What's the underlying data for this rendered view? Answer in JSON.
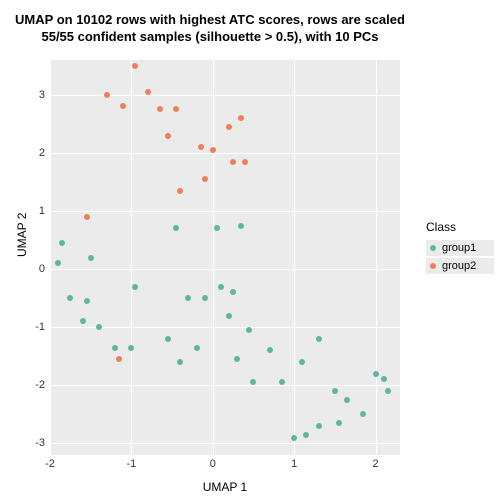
{
  "chart": {
    "type": "scatter",
    "title_line1": "UMAP on 10102 rows with highest ATC scores, rows are scaled",
    "title_line2": "55/55 confident samples (silhouette > 0.5), with 10 PCs",
    "title_fontsize": 13,
    "xlabel": "UMAP 1",
    "ylabel": "UMAP 2",
    "label_fontsize": 12,
    "tick_fontsize": 11,
    "xlim": [
      -2,
      2.3
    ],
    "ylim": [
      -3.2,
      3.6
    ],
    "xticks": [
      -2,
      -1,
      0,
      1,
      2
    ],
    "yticks": [
      -3,
      -2,
      -1,
      0,
      1,
      2,
      3
    ],
    "background_color": "#ffffff",
    "panel_color": "#ebebeb",
    "grid_color": "#ffffff",
    "legend": {
      "title": "Class",
      "items": [
        {
          "label": "group1",
          "color": "#5fb5a3"
        },
        {
          "label": "group2",
          "color": "#f07d5e"
        }
      ]
    },
    "series": [
      {
        "name": "group1",
        "color": "#5fb5a3",
        "marker_size": 6,
        "points": [
          [
            -1.9,
            0.1
          ],
          [
            -1.85,
            0.45
          ],
          [
            -1.75,
            -0.5
          ],
          [
            -1.6,
            -0.9
          ],
          [
            -1.5,
            0.2
          ],
          [
            -1.55,
            -0.55
          ],
          [
            -1.4,
            -1.0
          ],
          [
            -1.2,
            -1.35
          ],
          [
            -1.0,
            -1.35
          ],
          [
            -0.95,
            -0.3
          ],
          [
            -0.55,
            -1.2
          ],
          [
            -0.45,
            0.7
          ],
          [
            -0.4,
            -1.6
          ],
          [
            -0.3,
            -0.5
          ],
          [
            -0.2,
            -1.35
          ],
          [
            -0.1,
            -0.5
          ],
          [
            0.05,
            0.7
          ],
          [
            0.1,
            -0.3
          ],
          [
            0.2,
            -0.8
          ],
          [
            0.25,
            -0.4
          ],
          [
            0.3,
            -1.55
          ],
          [
            0.35,
            0.75
          ],
          [
            0.45,
            -1.05
          ],
          [
            0.5,
            -1.95
          ],
          [
            0.7,
            -1.4
          ],
          [
            0.85,
            -1.95
          ],
          [
            1.0,
            -2.9
          ],
          [
            1.1,
            -1.6
          ],
          [
            1.15,
            -2.85
          ],
          [
            1.3,
            -2.7
          ],
          [
            1.3,
            -1.2
          ],
          [
            1.5,
            -2.1
          ],
          [
            1.55,
            -2.65
          ],
          [
            1.65,
            -2.25
          ],
          [
            1.85,
            -2.5
          ],
          [
            2.0,
            -1.8
          ],
          [
            2.1,
            -1.9
          ],
          [
            2.15,
            -2.1
          ]
        ]
      },
      {
        "name": "group2",
        "color": "#f07d5e",
        "marker_size": 6,
        "points": [
          [
            -1.55,
            0.9
          ],
          [
            -1.3,
            3.0
          ],
          [
            -1.15,
            -1.55
          ],
          [
            -1.1,
            2.8
          ],
          [
            -0.95,
            3.5
          ],
          [
            -0.8,
            3.05
          ],
          [
            -0.65,
            2.75
          ],
          [
            -0.55,
            2.3
          ],
          [
            -0.45,
            2.75
          ],
          [
            -0.4,
            1.35
          ],
          [
            -0.15,
            2.1
          ],
          [
            -0.1,
            1.55
          ],
          [
            0.0,
            2.05
          ],
          [
            0.2,
            2.45
          ],
          [
            0.25,
            1.85
          ],
          [
            0.35,
            2.6
          ],
          [
            0.4,
            1.85
          ]
        ]
      }
    ]
  }
}
